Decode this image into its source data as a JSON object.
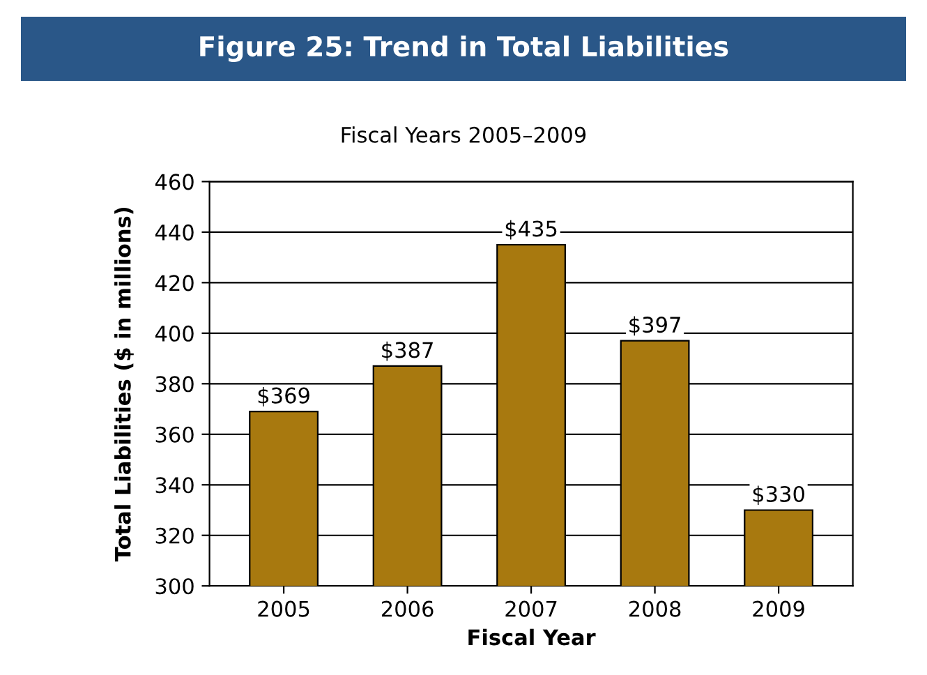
{
  "chart_data": {
    "type": "bar",
    "title": "Figure 25: Trend in Total Liabilities",
    "subtitle": "Fiscal Years 2005–2009",
    "xlabel": "Fiscal Year",
    "ylabel": "Total Liabilities ($ in millions)",
    "categories": [
      "2005",
      "2006",
      "2007",
      "2008",
      "2009"
    ],
    "values": [
      369,
      387,
      435,
      397,
      330
    ],
    "value_labels": [
      "$369",
      "$387",
      "$435",
      "$397",
      "$330"
    ],
    "color": "#a8790f",
    "ylim": [
      300,
      460
    ],
    "yticks": [
      300,
      320,
      340,
      360,
      380,
      400,
      420,
      440,
      460
    ],
    "grid": "y",
    "legend": false
  }
}
